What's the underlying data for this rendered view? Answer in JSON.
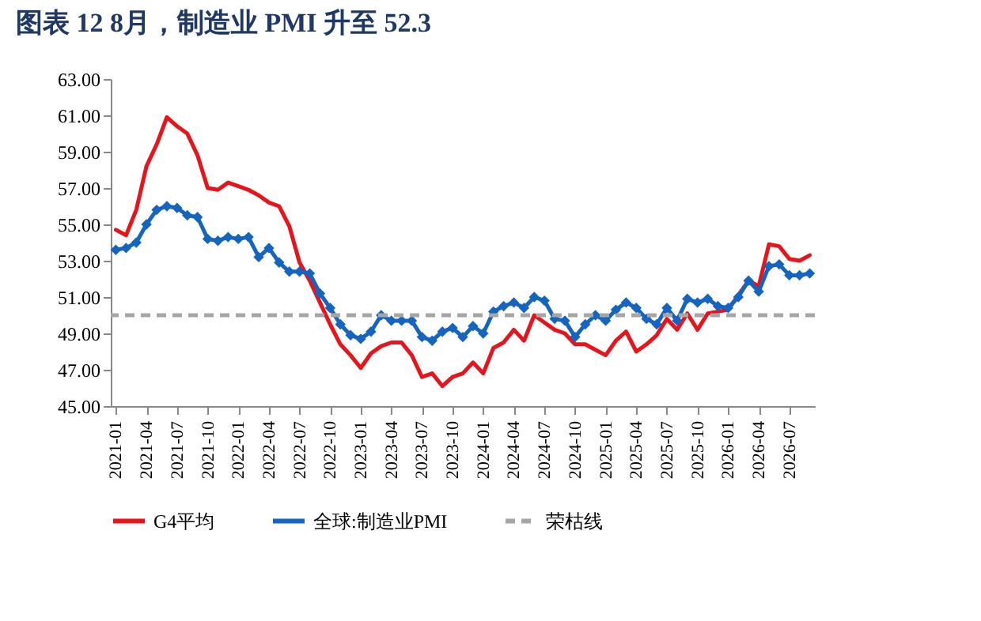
{
  "chart_data": {
    "type": "line",
    "title": "图表 12   8月，制造业 PMI 升至 52.3",
    "categories": [
      "2021-01",
      null,
      null,
      "2021-04",
      null,
      null,
      "2021-07",
      null,
      null,
      "2021-10",
      null,
      null,
      "2022-01",
      null,
      null,
      "2022-04",
      null,
      null,
      "2022-07",
      null,
      null,
      "2022-10",
      null,
      null,
      "2023-01",
      null,
      null,
      "2023-04",
      null,
      null,
      "2023-07",
      null,
      null,
      "2023-10",
      null,
      null,
      "2024-01",
      null,
      null,
      "2024-04",
      null,
      null,
      "2024-07",
      null,
      null,
      "2024-10",
      null,
      null,
      "2025-01",
      null,
      null,
      "2025-04",
      null,
      null,
      "2025-07",
      null,
      null,
      "2025-10",
      null,
      null,
      "2026-01",
      null,
      null,
      "2026-04",
      null,
      null,
      "2026-07",
      null,
      null
    ],
    "series": [
      {
        "name": "G4平均",
        "color": "#e8141c",
        "marker": "none",
        "line_style": "solid",
        "values": [
          54.7,
          54.4,
          55.8,
          58.2,
          59.4,
          60.9,
          60.4,
          60.0,
          58.8,
          57.0,
          56.9,
          57.3,
          57.1,
          56.9,
          56.6,
          56.2,
          56.0,
          54.9,
          52.9,
          51.9,
          50.7,
          49.5,
          48.4,
          47.8,
          47.1,
          47.9,
          48.3,
          48.5,
          48.5,
          47.8,
          46.6,
          46.8,
          46.1,
          46.6,
          46.8,
          47.4,
          46.8,
          48.2,
          48.5,
          49.2,
          48.6,
          50.0,
          49.6,
          49.2,
          49.0,
          48.4,
          48.4,
          48.1,
          47.8,
          48.6,
          49.1,
          48.0,
          48.4,
          48.9,
          49.8,
          49.2,
          50.1,
          49.2,
          50.1,
          50.2,
          50.3,
          51.1,
          51.9,
          51.6,
          53.9,
          53.8,
          53.1,
          53.0,
          53.3
        ]
      },
      {
        "name": "全球:制造业PMI",
        "color": "#1565c0",
        "marker": "diamond",
        "line_style": "solid",
        "values": [
          53.6,
          53.7,
          54.0,
          55.0,
          55.8,
          56.0,
          55.9,
          55.5,
          55.4,
          54.2,
          54.1,
          54.3,
          54.2,
          54.3,
          53.2,
          53.7,
          52.9,
          52.4,
          52.4,
          52.3,
          51.2,
          50.4,
          49.5,
          48.9,
          48.7,
          49.1,
          50.0,
          49.7,
          49.7,
          49.7,
          48.8,
          48.6,
          49.1,
          49.3,
          48.8,
          49.4,
          49.0,
          50.2,
          50.5,
          50.7,
          50.4,
          51.0,
          50.8,
          49.8,
          49.7,
          48.8,
          49.5,
          50.0,
          49.7,
          50.3,
          50.7,
          50.4,
          49.8,
          49.5,
          50.4,
          49.7,
          50.9,
          50.7,
          50.9,
          50.5,
          50.4,
          51.0,
          51.9,
          51.3,
          52.7,
          52.8,
          52.2,
          52.2,
          52.3
        ]
      }
    ],
    "ref_lines": [
      {
        "axis": "y",
        "value": 50,
        "label": "荣枯线",
        "color": "#a6a6a6",
        "line_style": "dashed"
      }
    ],
    "ylim": [
      45,
      63
    ],
    "yticks": [
      {
        "value": 45,
        "label": "45.00"
      },
      {
        "value": 47,
        "label": "47.00"
      },
      {
        "value": 49,
        "label": "49.00"
      },
      {
        "value": 51,
        "label": "51.00"
      },
      {
        "value": 53,
        "label": "53.00"
      },
      {
        "value": 55,
        "label": "55.00"
      },
      {
        "value": 57,
        "label": "57.00"
      },
      {
        "value": 59,
        "label": "59.00"
      },
      {
        "value": 61,
        "label": "61.00"
      },
      {
        "value": 63,
        "label": "63.00"
      }
    ],
    "grid": false,
    "legend": "bottom"
  }
}
